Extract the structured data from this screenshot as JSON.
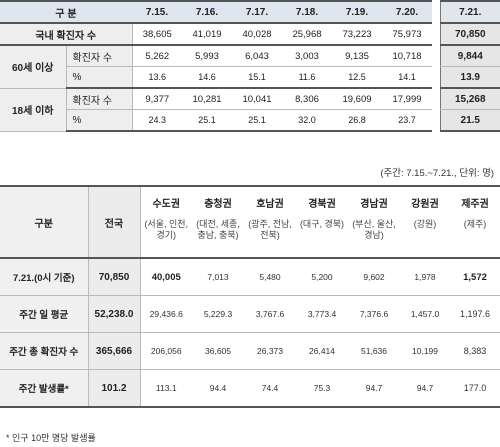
{
  "table1": {
    "header": {
      "label": "구 분",
      "dates": [
        "7.15.",
        "7.16.",
        "7.17.",
        "7.18.",
        "7.19.",
        "7.20."
      ],
      "last": "7.21."
    },
    "domestic": {
      "label": "국내 확진자 수",
      "values": [
        "38,605",
        "41,019",
        "40,028",
        "25,968",
        "73,223",
        "75,973"
      ],
      "last": "70,850"
    },
    "over60": {
      "group": "60세 이상",
      "count_label": "확진자 수",
      "count": [
        "5,262",
        "5,993",
        "6,043",
        "3,003",
        "9,135",
        "10,718"
      ],
      "count_last": "9,844",
      "pct_label": "%",
      "pct": [
        "13.6",
        "14.6",
        "15.1",
        "11.6",
        "12.5",
        "14.1"
      ],
      "pct_last": "13.9"
    },
    "under18": {
      "group": "18세 이하",
      "count_label": "확진자 수",
      "count": [
        "9,377",
        "10,281",
        "10,041",
        "8,306",
        "19,609",
        "17,999"
      ],
      "count_last": "15,268",
      "pct_label": "%",
      "pct": [
        "24.3",
        "25.1",
        "25.1",
        "32.0",
        "26.8",
        "23.7"
      ],
      "pct_last": "21.5"
    }
  },
  "unit_note": "(주간: 7.15.~7.21., 단위: 명)",
  "table2": {
    "header": {
      "label": "구분",
      "total": "전국",
      "regions": [
        "수도권",
        "충청권",
        "호남권",
        "경북권",
        "경남권",
        "강원권",
        "제주권"
      ],
      "subs": [
        "(서울, 인천, 경기)",
        "(대전, 세종, 충남, 충북)",
        "(광주, 전남, 전북)",
        "(대구, 경북)",
        "(부산, 울산, 경남)",
        "(강원)",
        "(제주)"
      ]
    },
    "rows": [
      {
        "label": "7.21.(0시 기준)",
        "total": "70,850",
        "values": [
          "40,005",
          "7,013",
          "5,480",
          "5,200",
          "9,602",
          "1,978",
          "1,572"
        ]
      },
      {
        "label": "주간 일 평균",
        "total": "52,238.0",
        "values": [
          "29,436.6",
          "5,229.3",
          "3,767.6",
          "3,773.4",
          "7,376.6",
          "1,457.0",
          "1,197.6"
        ]
      },
      {
        "label": "주간 총 확진자 수",
        "total": "365,666",
        "values": [
          "206,056",
          "36,605",
          "26,373",
          "26,414",
          "51,636",
          "10,199",
          "8,383"
        ]
      },
      {
        "label": "주간 발생률*",
        "total": "101.2",
        "values": [
          "113.1",
          "94.4",
          "74.4",
          "75.3",
          "94.7",
          "94.7",
          "177.0"
        ]
      }
    ]
  },
  "footnote": "* 인구 10만 명당 발생률"
}
